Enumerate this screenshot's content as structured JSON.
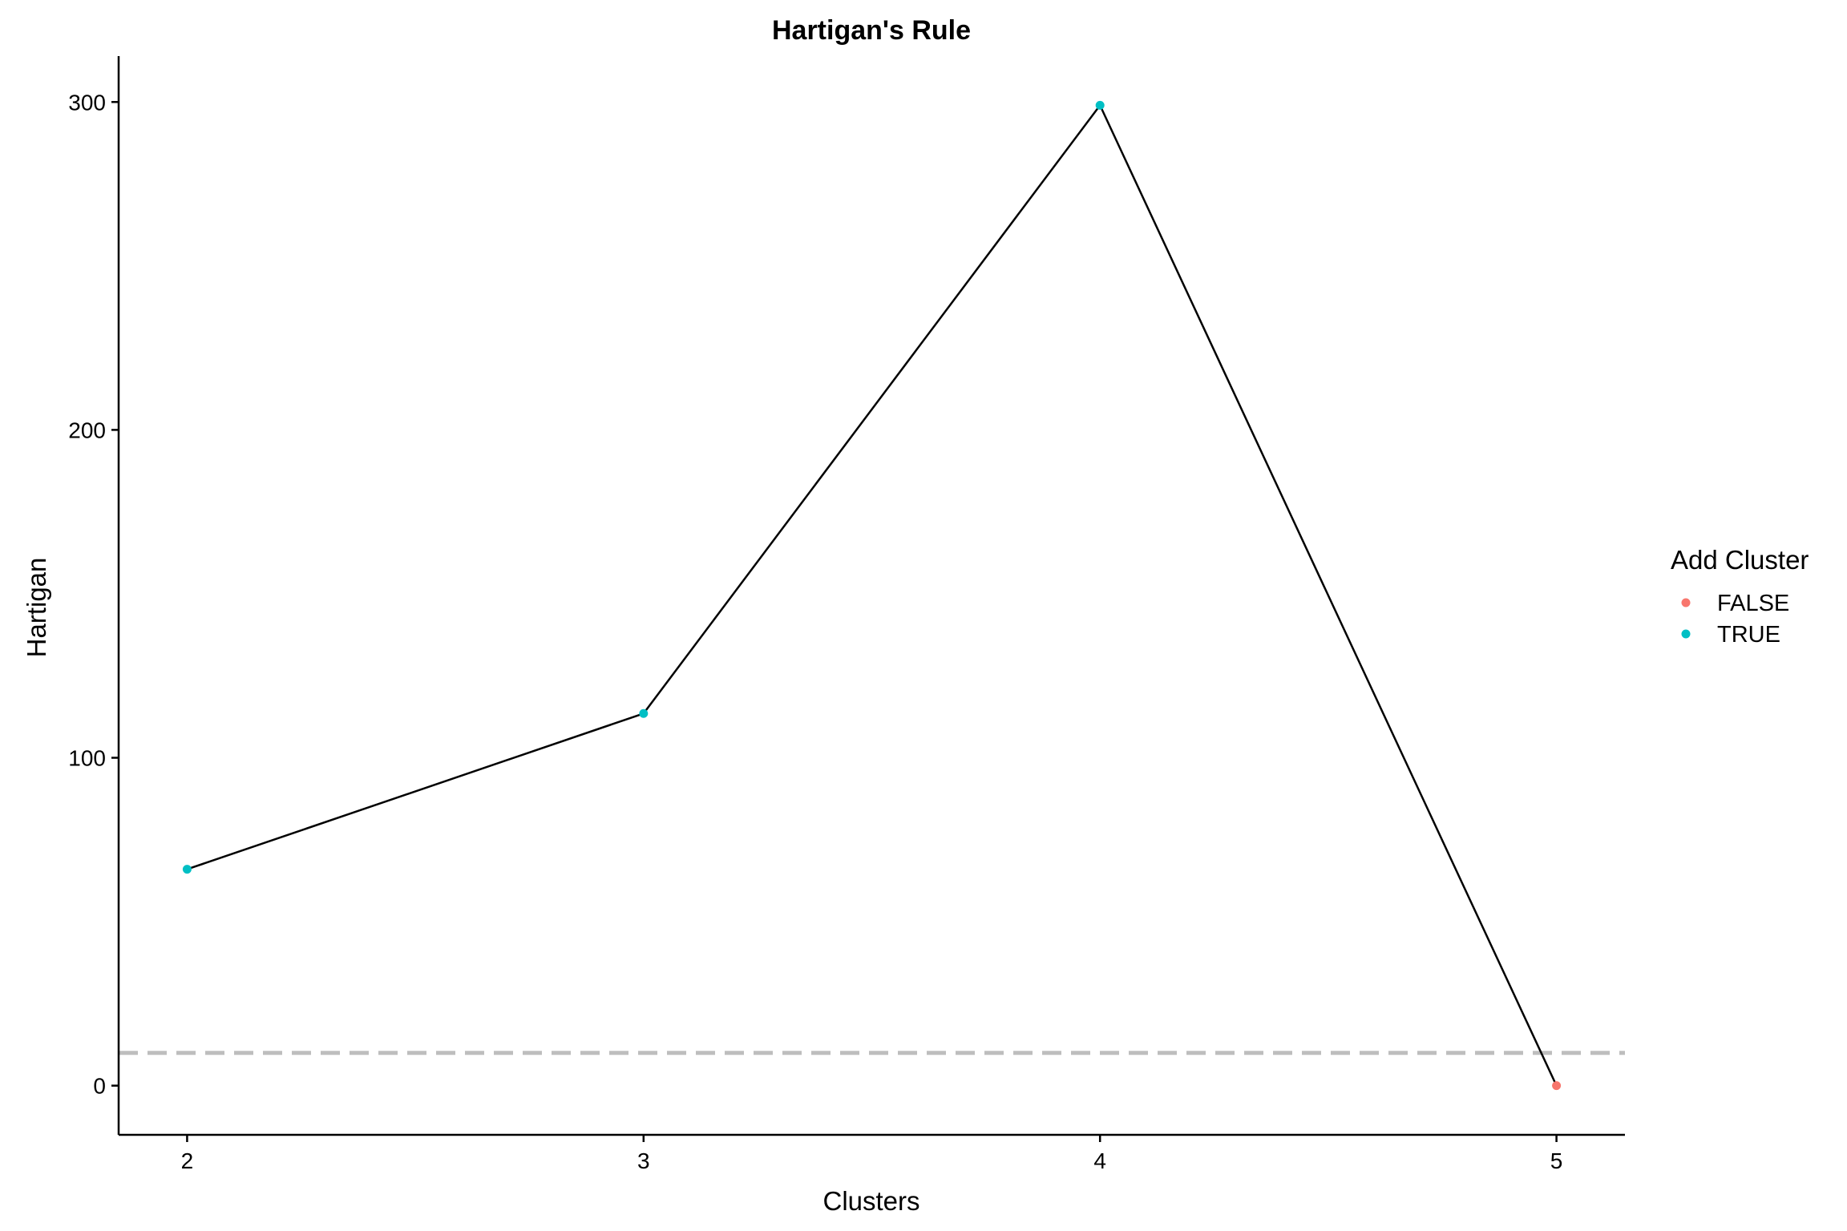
{
  "chart_data": {
    "type": "line",
    "title": "Hartigan's Rule",
    "xlabel": "Clusters",
    "ylabel": "Hartigan",
    "x": [
      2,
      3,
      4,
      5
    ],
    "y": [
      66,
      113.5,
      299,
      0
    ],
    "add_cluster": [
      "TRUE",
      "TRUE",
      "TRUE",
      "FALSE"
    ],
    "xticks": [
      2,
      3,
      4,
      5
    ],
    "yticks": [
      0,
      100,
      200,
      300
    ],
    "xlim": [
      1.85,
      5.15
    ],
    "ylim": [
      -15,
      314
    ],
    "reference_line": {
      "y": 10,
      "style": "dashed",
      "color": "#bebebe"
    },
    "grid": false,
    "line_color": "#000000",
    "legend": {
      "title": "Add Cluster",
      "position": "right",
      "entries": [
        {
          "label": "FALSE",
          "color": "#F8766D"
        },
        {
          "label": "TRUE",
          "color": "#00BFC4"
        }
      ]
    }
  }
}
